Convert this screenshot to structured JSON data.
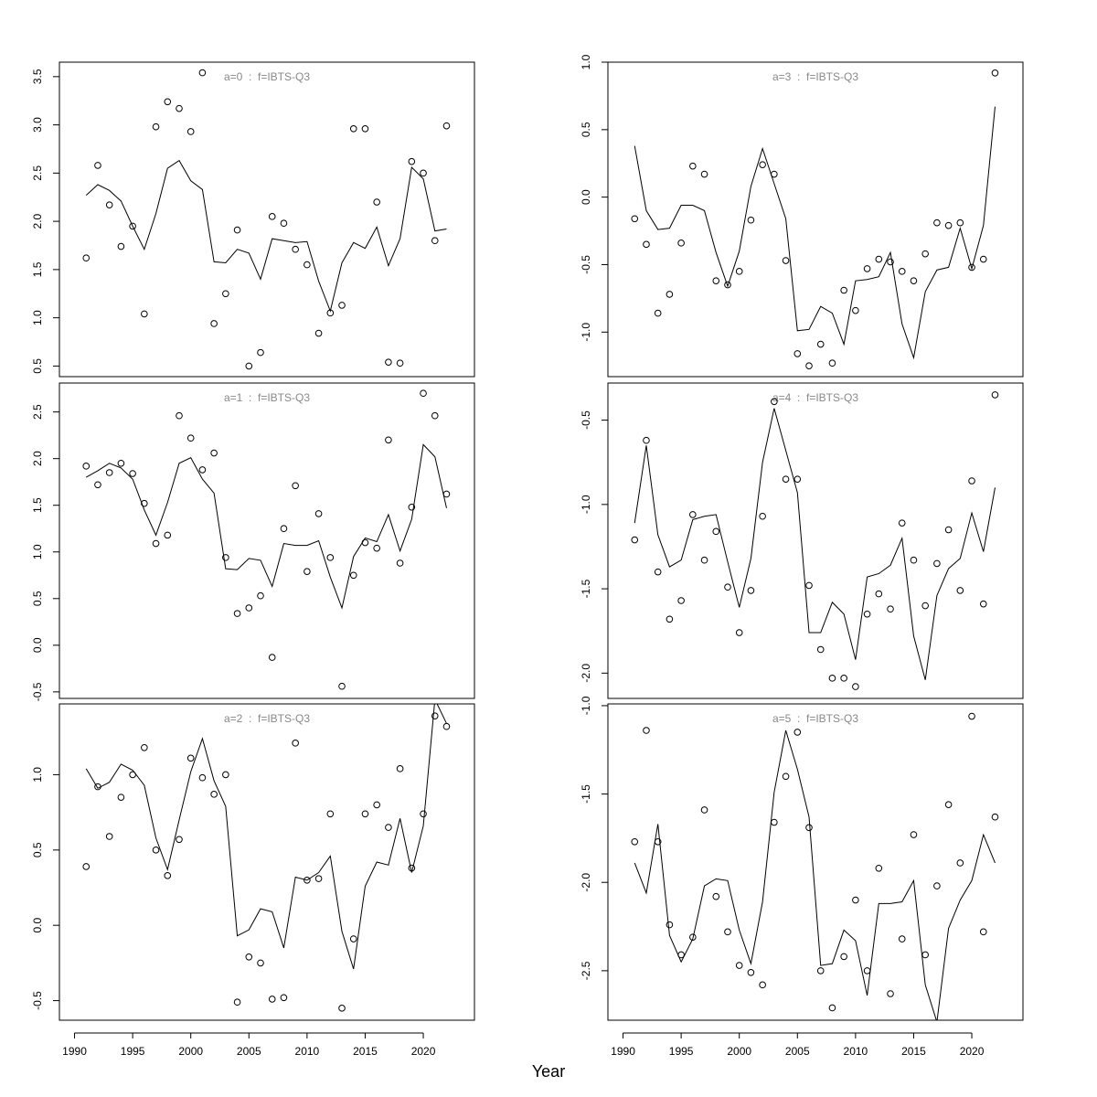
{
  "xlabel": "Year",
  "chart_data": [
    {
      "type": "line",
      "title": "a=0  :  f=IBTS-Q3",
      "x": [
        1991,
        1992,
        1993,
        1994,
        1995,
        1996,
        1997,
        1998,
        1999,
        2000,
        2001,
        2002,
        2003,
        2004,
        2005,
        2006,
        2007,
        2008,
        2009,
        2010,
        2011,
        2012,
        2013,
        2014,
        2015,
        2016,
        2017,
        2018,
        2019,
        2020,
        2021,
        2022
      ],
      "series": [
        {
          "style": "line",
          "color": "#000000",
          "values": [
            2.27,
            2.38,
            2.32,
            2.21,
            1.95,
            1.71,
            2.08,
            2.55,
            2.63,
            2.42,
            2.33,
            1.58,
            1.57,
            1.71,
            1.67,
            1.4,
            1.82,
            1.8,
            1.78,
            1.79,
            1.38,
            1.07,
            1.57,
            1.78,
            1.72,
            1.94,
            1.54,
            1.82,
            2.56,
            2.44,
            1.9,
            1.92
          ]
        },
        {
          "style": "points",
          "color": "#000000",
          "values": [
            1.62,
            2.58,
            2.17,
            1.74,
            1.95,
            1.04,
            2.98,
            3.24,
            3.17,
            2.93,
            3.54,
            0.94,
            1.25,
            1.91,
            0.5,
            0.64,
            2.05,
            1.98,
            1.71,
            1.55,
            0.84,
            1.05,
            1.13,
            2.96,
            2.96,
            2.2,
            0.54,
            0.53,
            2.62,
            2.5,
            1.8,
            2.99
          ]
        }
      ],
      "xlim": [
        1988.7,
        2024.4
      ],
      "ylim": [
        0.39,
        3.65
      ],
      "yticks": [
        0.5,
        {
          "value": 1,
          "label": "1.0"
        },
        1.5,
        {
          "value": 2,
          "label": "2.0"
        },
        2.5,
        {
          "value": 3,
          "label": "3.0"
        },
        3.5
      ]
    },
    {
      "type": "line",
      "title": "a=1  :  f=IBTS-Q3",
      "x": [
        1991,
        1992,
        1993,
        1994,
        1995,
        1996,
        1997,
        1998,
        1999,
        2000,
        2001,
        2002,
        2003,
        2004,
        2005,
        2006,
        2007,
        2008,
        2009,
        2010,
        2011,
        2012,
        2013,
        2014,
        2015,
        2016,
        2017,
        2018,
        2019,
        2020,
        2021,
        2022
      ],
      "series": [
        {
          "style": "line",
          "color": "#000000",
          "values": [
            1.8,
            1.87,
            1.95,
            1.9,
            1.78,
            1.45,
            1.18,
            1.53,
            1.95,
            2.01,
            1.78,
            1.63,
            0.82,
            0.81,
            0.93,
            0.91,
            0.63,
            1.09,
            1.07,
            1.07,
            1.12,
            0.73,
            0.4,
            0.95,
            1.15,
            1.11,
            1.4,
            1.01,
            1.35,
            2.15,
            2.02,
            1.47
          ]
        },
        {
          "style": "points",
          "color": "#000000",
          "values": [
            1.92,
            1.72,
            1.85,
            1.95,
            1.84,
            1.52,
            1.09,
            1.18,
            2.46,
            2.22,
            1.88,
            2.06,
            0.94,
            0.34,
            0.4,
            0.53,
            -0.13,
            1.25,
            1.71,
            0.79,
            1.41,
            0.94,
            -0.44,
            0.75,
            1.1,
            1.04,
            2.2,
            0.88,
            1.48,
            2.7,
            2.46,
            1.62
          ]
        }
      ],
      "xlim": [
        1988.7,
        2024.4
      ],
      "ylim": [
        -0.57,
        2.81
      ],
      "yticks": [
        -0.5,
        {
          "value": 0,
          "label": "0.0"
        },
        0.5,
        {
          "value": 1,
          "label": "1.0"
        },
        1.5,
        {
          "value": 2,
          "label": "2.0"
        },
        2.5
      ]
    },
    {
      "type": "line",
      "title": "a=2  :  f=IBTS-Q3",
      "x": [
        1991,
        1992,
        1993,
        1994,
        1995,
        1996,
        1997,
        1998,
        1999,
        2000,
        2001,
        2002,
        2003,
        2004,
        2005,
        2006,
        2007,
        2008,
        2009,
        2010,
        2011,
        2012,
        2013,
        2014,
        2015,
        2016,
        2017,
        2018,
        2019,
        2020,
        2021,
        2022
      ],
      "series": [
        {
          "style": "line",
          "color": "#000000",
          "values": [
            1.04,
            0.91,
            0.95,
            1.07,
            1.03,
            0.93,
            0.58,
            0.37,
            0.7,
            1.02,
            1.24,
            0.96,
            0.79,
            -0.07,
            -0.03,
            0.11,
            0.09,
            -0.15,
            0.32,
            0.3,
            0.35,
            0.46,
            -0.04,
            -0.29,
            0.26,
            0.42,
            0.4,
            0.71,
            0.35,
            0.66,
            1.5,
            1.34
          ]
        },
        {
          "style": "points",
          "color": "#000000",
          "values": [
            0.39,
            0.92,
            0.59,
            0.85,
            1.0,
            1.18,
            0.5,
            0.33,
            0.57,
            1.11,
            0.98,
            0.87,
            1.0,
            -0.51,
            -0.21,
            -0.25,
            -0.49,
            -0.48,
            1.21,
            0.3,
            0.31,
            0.74,
            -0.55,
            -0.09,
            0.74,
            0.8,
            0.65,
            1.04,
            0.38,
            0.74,
            1.39,
            1.32
          ]
        }
      ],
      "xlim": [
        1988.7,
        2024.4
      ],
      "ylim": [
        -0.63,
        1.47
      ],
      "yticks": [
        -0.5,
        {
          "value": 0,
          "label": "0.0"
        },
        0.5,
        {
          "value": 1,
          "label": "1.0"
        }
      ],
      "xticks": [
        1990,
        1995,
        2000,
        2005,
        2010,
        2015,
        2020
      ]
    },
    {
      "type": "line",
      "title": "a=3  :  f=IBTS-Q3",
      "x": [
        1991,
        1992,
        1993,
        1994,
        1995,
        1996,
        1997,
        1998,
        1999,
        2000,
        2001,
        2002,
        2003,
        2004,
        2005,
        2006,
        2007,
        2008,
        2009,
        2010,
        2011,
        2012,
        2013,
        2014,
        2015,
        2016,
        2017,
        2018,
        2019,
        2020,
        2021,
        2022
      ],
      "series": [
        {
          "style": "line",
          "color": "#000000",
          "values": [
            0.38,
            -0.1,
            -0.24,
            -0.23,
            -0.06,
            -0.06,
            -0.1,
            -0.41,
            -0.66,
            -0.4,
            0.08,
            0.36,
            0.1,
            -0.16,
            -0.99,
            -0.98,
            -0.81,
            -0.86,
            -1.09,
            -0.62,
            -0.61,
            -0.59,
            -0.41,
            -0.94,
            -1.19,
            -0.7,
            -0.54,
            -0.52,
            -0.23,
            -0.53,
            -0.21,
            0.67
          ]
        },
        {
          "style": "points",
          "color": "#000000",
          "values": [
            -0.16,
            -0.35,
            -0.86,
            -0.72,
            -0.34,
            0.23,
            0.17,
            -0.62,
            -0.65,
            -0.55,
            -0.17,
            0.24,
            0.17,
            -0.47,
            -1.16,
            -1.25,
            -1.09,
            -1.23,
            -0.69,
            -0.84,
            -0.53,
            -0.46,
            -0.48,
            -0.55,
            -0.62,
            -0.42,
            -0.19,
            -0.21,
            -0.19,
            -0.52,
            -0.46,
            0.92
          ]
        }
      ],
      "xlim": [
        1988.7,
        2024.4
      ],
      "ylim": [
        -1.33,
        1.0
      ],
      "yticks": [
        {
          "value": -1,
          "label": "-1.0"
        },
        -0.5,
        {
          "value": 0,
          "label": "0.0"
        },
        0.5,
        {
          "value": 1,
          "label": "1.0"
        }
      ]
    },
    {
      "type": "line",
      "title": "a=4  :  f=IBTS-Q3",
      "x": [
        1991,
        1992,
        1993,
        1994,
        1995,
        1996,
        1997,
        1998,
        1999,
        2000,
        2001,
        2002,
        2003,
        2004,
        2005,
        2006,
        2007,
        2008,
        2009,
        2010,
        2011,
        2012,
        2013,
        2014,
        2015,
        2016,
        2017,
        2018,
        2019,
        2020,
        2021,
        2022
      ],
      "series": [
        {
          "style": "line",
          "color": "#000000",
          "values": [
            -1.11,
            -0.65,
            -1.18,
            -1.37,
            -1.33,
            -1.09,
            -1.07,
            -1.06,
            -1.34,
            -1.61,
            -1.32,
            -0.75,
            -0.43,
            -0.68,
            -0.93,
            -1.76,
            -1.76,
            -1.58,
            -1.65,
            -1.92,
            -1.43,
            -1.41,
            -1.36,
            -1.2,
            -1.78,
            -2.04,
            -1.54,
            -1.38,
            -1.32,
            -1.05,
            -1.28,
            -0.9
          ]
        },
        {
          "style": "points",
          "color": "#000000",
          "values": [
            -1.21,
            -0.62,
            -1.4,
            -1.68,
            -1.57,
            -1.06,
            -1.33,
            -1.16,
            -1.49,
            -1.76,
            -1.51,
            -1.07,
            -0.39,
            -0.85,
            -0.85,
            -1.48,
            -1.86,
            -2.03,
            -2.03,
            -2.08,
            -1.65,
            -1.53,
            -1.62,
            -1.11,
            -1.33,
            -1.6,
            -1.35,
            -1.15,
            -1.51,
            -0.86,
            -1.59,
            -0.35
          ]
        }
      ],
      "xlim": [
        1988.7,
        2024.4
      ],
      "ylim": [
        -2.15,
        -0.28
      ],
      "yticks": [
        {
          "value": -2,
          "label": "-2.0"
        },
        -1.5,
        {
          "value": -1,
          "label": "-1.0"
        },
        -0.5
      ]
    },
    {
      "type": "line",
      "title": "a=5  :  f=IBTS-Q3",
      "x": [
        1991,
        1992,
        1993,
        1994,
        1995,
        1996,
        1997,
        1998,
        1999,
        2000,
        2001,
        2002,
        2003,
        2004,
        2005,
        2006,
        2007,
        2008,
        2009,
        2010,
        2011,
        2012,
        2013,
        2014,
        2015,
        2016,
        2017,
        2018,
        2019,
        2020,
        2021,
        2022
      ],
      "series": [
        {
          "style": "line",
          "color": "#000000",
          "values": [
            -1.89,
            -2.06,
            -1.67,
            -2.3,
            -2.45,
            -2.32,
            -2.02,
            -1.98,
            -1.99,
            -2.27,
            -2.46,
            -2.11,
            -1.49,
            -1.14,
            -1.36,
            -1.63,
            -2.47,
            -2.46,
            -2.27,
            -2.33,
            -2.64,
            -2.12,
            -2.12,
            -2.11,
            -1.99,
            -2.58,
            -2.79,
            -2.26,
            -2.1,
            -1.99,
            -1.73,
            -1.89
          ]
        },
        {
          "style": "points",
          "color": "#000000",
          "values": [
            -1.77,
            -1.14,
            -1.77,
            -2.24,
            -2.41,
            -2.31,
            -1.59,
            -2.08,
            -2.28,
            -2.47,
            -2.51,
            -2.58,
            -1.66,
            -1.4,
            -1.15,
            -1.69,
            -2.5,
            -2.71,
            -2.42,
            -2.1,
            -2.5,
            -1.92,
            -2.63,
            -2.32,
            -1.73,
            -2.41,
            -2.02,
            -1.56,
            -1.89,
            -1.06,
            -2.28,
            -1.63
          ]
        }
      ],
      "xlim": [
        1988.7,
        2024.4
      ],
      "ylim": [
        -2.78,
        -0.99
      ],
      "yticks": [
        {
          "value": -2.5,
          "label": "-2.5"
        },
        {
          "value": -2,
          "label": "-2.0"
        },
        -1.5,
        {
          "value": -1,
          "label": "-1.0"
        }
      ],
      "xticks": [
        1990,
        1995,
        2000,
        2005,
        2010,
        2015,
        2020
      ]
    }
  ]
}
